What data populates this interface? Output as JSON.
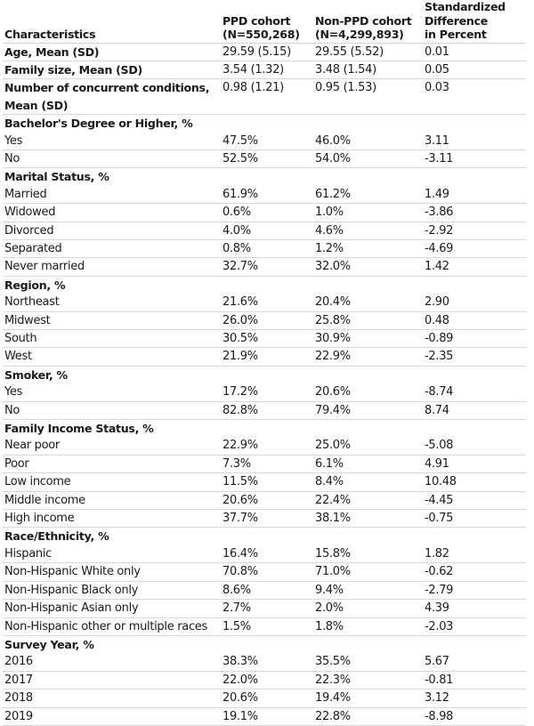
{
  "header": {
    "col1": "Characteristics",
    "col2_line1": "PPD cohort",
    "col2_line2": "(N=550,268)",
    "col3_line1": "Non-PPD cohort",
    "col3_line2": "(N=4,299,893)",
    "col4_line1": "Standardized",
    "col4_line2": "Difference",
    "col4_line3": "in Percent"
  },
  "continuous": [
    {
      "label": "Age, Mean (SD)",
      "ppd": "29.59 (5.15)",
      "nonppd": "29.55 (5.52)",
      "diff": "0.01"
    },
    {
      "label": "Family size, Mean (SD)",
      "ppd": "3.54 (1.32)",
      "nonppd": "3.48 (1.54)",
      "diff": "0.05"
    },
    {
      "label": "Number of concurrent conditions, Mean (SD)",
      "ppd": "0.98 (1.21)",
      "nonppd": "0.95 (1.53)",
      "diff": "0.03"
    }
  ],
  "sections": [
    {
      "title": "Bachelor's Degree or Higher, %",
      "rows": [
        {
          "label": "Yes",
          "ppd": "47.5%",
          "nonppd": "46.0%",
          "diff": "3.11"
        },
        {
          "label": "No",
          "ppd": "52.5%",
          "nonppd": "54.0%",
          "diff": "-3.11"
        }
      ]
    },
    {
      "title": "Marital Status, %",
      "rows": [
        {
          "label": "Married",
          "ppd": "61.9%",
          "nonppd": "61.2%",
          "diff": "1.49"
        },
        {
          "label": "Widowed",
          "ppd": "0.6%",
          "nonppd": "1.0%",
          "diff": "-3.86"
        },
        {
          "label": "Divorced",
          "ppd": "4.0%",
          "nonppd": "4.6%",
          "diff": "-2.92"
        },
        {
          "label": "Separated",
          "ppd": "0.8%",
          "nonppd": "1.2%",
          "diff": "-4.69"
        },
        {
          "label": "Never married",
          "ppd": "32.7%",
          "nonppd": "32.0%",
          "diff": "1.42"
        }
      ]
    },
    {
      "title": "Region, %",
      "rows": [
        {
          "label": "Northeast",
          "ppd": "21.6%",
          "nonppd": "20.4%",
          "diff": "2.90"
        },
        {
          "label": "Midwest",
          "ppd": "26.0%",
          "nonppd": "25.8%",
          "diff": "0.48"
        },
        {
          "label": "South",
          "ppd": "30.5%",
          "nonppd": "30.9%",
          "diff": "-0.89"
        },
        {
          "label": "West",
          "ppd": "21.9%",
          "nonppd": "22.9%",
          "diff": "-2.35"
        }
      ]
    },
    {
      "title": "Smoker, %",
      "rows": [
        {
          "label": "Yes",
          "ppd": "17.2%",
          "nonppd": "20.6%",
          "diff": "-8.74"
        },
        {
          "label": "No",
          "ppd": "82.8%",
          "nonppd": "79.4%",
          "diff": "8.74"
        }
      ]
    },
    {
      "title": "Family Income Status, %",
      "rows": [
        {
          "label": "Near poor",
          "ppd": "22.9%",
          "nonppd": "25.0%",
          "diff": "-5.08"
        },
        {
          "label": "Poor",
          "ppd": "7.3%",
          "nonppd": "6.1%",
          "diff": "4.91"
        },
        {
          "label": "Low income",
          "ppd": "11.5%",
          "nonppd": "8.4%",
          "diff": "10.48"
        },
        {
          "label": "Middle income",
          "ppd": "20.6%",
          "nonppd": "22.4%",
          "diff": "-4.45"
        },
        {
          "label": "High income",
          "ppd": "37.7%",
          "nonppd": "38.1%",
          "diff": "-0.75"
        }
      ]
    },
    {
      "title": "Race/Ethnicity, %",
      "rows": [
        {
          "label": "Hispanic",
          "ppd": "16.4%",
          "nonppd": "15.8%",
          "diff": "1.82"
        },
        {
          "label": "Non-Hispanic White only",
          "ppd": "70.8%",
          "nonppd": "71.0%",
          "diff": "-0.62"
        },
        {
          "label": "Non-Hispanic Black only",
          "ppd": "8.6%",
          "nonppd": "9.4%",
          "diff": "-2.79"
        },
        {
          "label": "Non-Hispanic Asian only",
          "ppd": "2.7%",
          "nonppd": "2.0%",
          "diff": "4.39"
        },
        {
          "label": "Non-Hispanic other or multiple races",
          "ppd": "1.5%",
          "nonppd": "1.8%",
          "diff": "-2.03"
        }
      ]
    },
    {
      "title": "Survey Year, %",
      "rows": [
        {
          "label": "2016",
          "ppd": "38.3%",
          "nonppd": "35.5%",
          "diff": "5.67"
        },
        {
          "label": "2017",
          "ppd": "22.0%",
          "nonppd": "22.3%",
          "diff": "-0.81"
        },
        {
          "label": "2018",
          "ppd": "20.6%",
          "nonppd": "19.4%",
          "diff": "3.12"
        },
        {
          "label": "2019",
          "ppd": "19.1%",
          "nonppd": "22.8%",
          "diff": "-8.98"
        }
      ]
    }
  ]
}
